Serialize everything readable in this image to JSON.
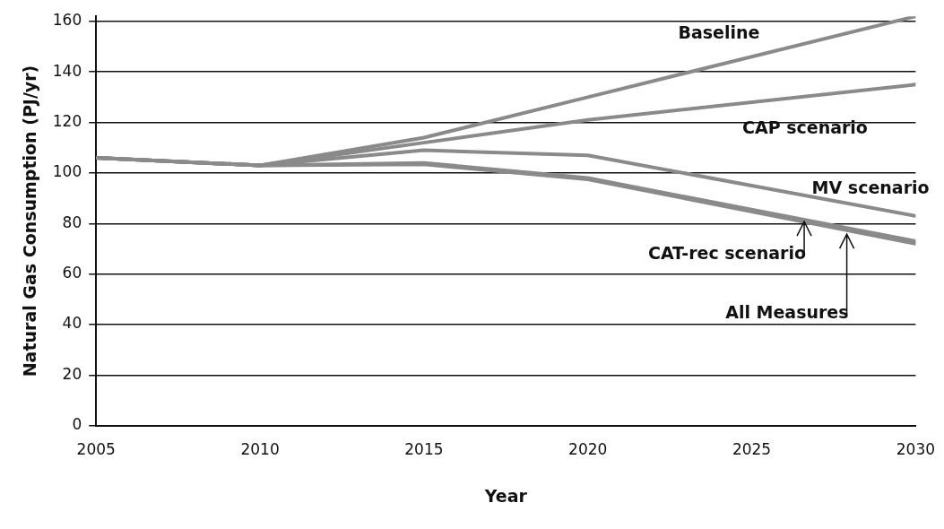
{
  "chart_data": {
    "type": "line",
    "xlabel": "Year",
    "ylabel": "Natural Gas Consumption (PJ/yr)",
    "x": [
      2005,
      2010,
      2015,
      2020,
      2030
    ],
    "series": [
      {
        "name": "Baseline",
        "color": "#8a8a8a",
        "values": [
          106,
          103,
          114,
          130,
          162
        ]
      },
      {
        "name": "CAP scenario",
        "color": "#8a8a8a",
        "values": [
          106,
          103,
          112,
          121,
          135
        ]
      },
      {
        "name": "MV scenario",
        "color": "#8a8a8a",
        "values": [
          106,
          103,
          109,
          107,
          83
        ]
      },
      {
        "color": "#8a8a8a",
        "values": [
          106,
          103,
          104,
          98,
          73
        ]
      },
      {
        "color": "#8a8a8a",
        "values": [
          106,
          103,
          103.4,
          97.5,
          72
        ]
      }
    ],
    "xlim": [
      2005,
      2030
    ],
    "xticks": [
      2005,
      2010,
      2015,
      2020,
      2025,
      2030
    ],
    "ylim": [
      0,
      162
    ],
    "yticks": [
      0,
      20,
      40,
      60,
      80,
      100,
      120,
      140,
      160
    ],
    "grid": "y",
    "legend": false,
    "marker": "none",
    "line_style": "solid",
    "annotations": [
      {
        "text": "CAT-rec scenario",
        "x": 2026.6,
        "y": 81.5
      },
      {
        "text": "All Measures",
        "x": 2027.9,
        "y": 76.5
      }
    ]
  }
}
